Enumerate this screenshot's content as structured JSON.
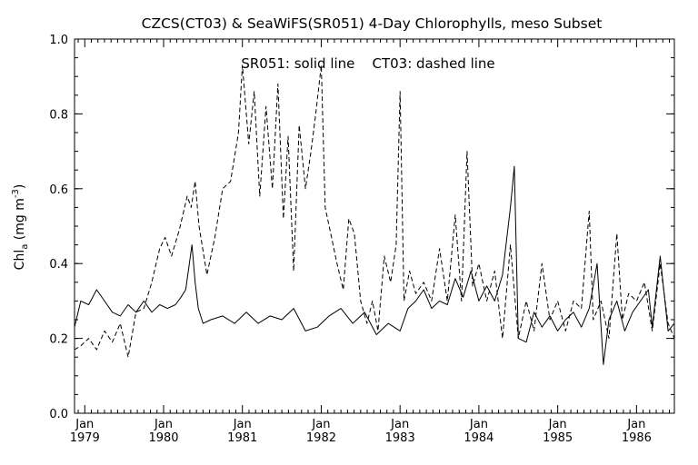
{
  "chart_data": {
    "type": "line",
    "title": "CZCS(CT03) & SeaWiFS(SR051) 4-Day Chlorophylls, meso Subset",
    "annotation": "SR051: solid line    CT03: dashed line",
    "ylabel_main": "Chl",
    "ylabel_sub": "a",
    "ylabel_unit_open": " (mg m",
    "ylabel_sup": "-3",
    "ylabel_unit_close": ")",
    "xlim": [
      1978.87,
      1986.48
    ],
    "ylim": [
      0.0,
      1.0
    ],
    "yticks": [
      {
        "value": 0.0,
        "label": "0.0"
      },
      {
        "value": 0.2,
        "label": "0.2"
      },
      {
        "value": 0.4,
        "label": "0.4"
      },
      {
        "value": 0.6,
        "label": "0.6"
      },
      {
        "value": 0.8,
        "label": "0.8"
      },
      {
        "value": 1.0,
        "label": "1.0"
      }
    ],
    "xticks": [
      {
        "value": 1979.0,
        "month": "Jan",
        "year": "1979"
      },
      {
        "value": 1980.0,
        "month": "Jan",
        "year": "1980"
      },
      {
        "value": 1981.0,
        "month": "Jan",
        "year": "1981"
      },
      {
        "value": 1982.0,
        "month": "Jan",
        "year": "1982"
      },
      {
        "value": 1983.0,
        "month": "Jan",
        "year": "1983"
      },
      {
        "value": 1984.0,
        "month": "Jan",
        "year": "1984"
      },
      {
        "value": 1985.0,
        "month": "Jan",
        "year": "1985"
      },
      {
        "value": 1986.0,
        "month": "Jan",
        "year": "1986"
      }
    ],
    "grid": false,
    "series": [
      {
        "name": "SR051",
        "style": "solid",
        "x": [
          1978.87,
          1978.95,
          1979.05,
          1979.15,
          1979.25,
          1979.35,
          1979.45,
          1979.55,
          1979.65,
          1979.75,
          1979.85,
          1979.95,
          1980.05,
          1980.15,
          1980.22,
          1980.28,
          1980.32,
          1980.36,
          1980.4,
          1980.44,
          1980.5,
          1980.6,
          1980.75,
          1980.9,
          1981.05,
          1981.2,
          1981.35,
          1981.5,
          1981.65,
          1981.8,
          1981.95,
          1982.1,
          1982.25,
          1982.4,
          1982.55,
          1982.7,
          1982.85,
          1983.0,
          1983.1,
          1983.2,
          1983.3,
          1983.4,
          1983.5,
          1983.6,
          1983.7,
          1983.8,
          1983.9,
          1984.0,
          1984.1,
          1984.2,
          1984.3,
          1984.4,
          1984.45,
          1984.5,
          1984.6,
          1984.7,
          1984.8,
          1984.9,
          1985.0,
          1985.1,
          1985.2,
          1985.3,
          1985.4,
          1985.5,
          1985.58,
          1985.65,
          1985.75,
          1985.85,
          1985.95,
          1986.05,
          1986.15,
          1986.2,
          1986.3,
          1986.4,
          1986.48
        ],
        "y": [
          0.23,
          0.3,
          0.29,
          0.33,
          0.3,
          0.27,
          0.26,
          0.29,
          0.27,
          0.3,
          0.27,
          0.29,
          0.28,
          0.29,
          0.31,
          0.33,
          0.39,
          0.45,
          0.35,
          0.28,
          0.24,
          0.25,
          0.26,
          0.24,
          0.27,
          0.24,
          0.26,
          0.25,
          0.28,
          0.22,
          0.23,
          0.26,
          0.28,
          0.24,
          0.27,
          0.21,
          0.24,
          0.22,
          0.28,
          0.3,
          0.33,
          0.28,
          0.3,
          0.29,
          0.36,
          0.31,
          0.38,
          0.3,
          0.34,
          0.3,
          0.37,
          0.55,
          0.66,
          0.2,
          0.19,
          0.27,
          0.23,
          0.26,
          0.22,
          0.25,
          0.27,
          0.23,
          0.28,
          0.4,
          0.13,
          0.25,
          0.3,
          0.22,
          0.27,
          0.3,
          0.33,
          0.23,
          0.42,
          0.22,
          0.24
        ]
      },
      {
        "name": "CT03",
        "style": "dashed",
        "x": [
          1978.87,
          1978.95,
          1979.05,
          1979.15,
          1979.25,
          1979.35,
          1979.45,
          1979.55,
          1979.65,
          1979.75,
          1979.85,
          1979.95,
          1980.02,
          1980.1,
          1980.2,
          1980.3,
          1980.35,
          1980.4,
          1980.45,
          1980.55,
          1980.65,
          1980.75,
          1980.85,
          1980.95,
          1981.0,
          1981.08,
          1981.15,
          1981.22,
          1981.3,
          1981.38,
          1981.45,
          1981.52,
          1981.58,
          1981.65,
          1981.72,
          1981.8,
          1981.87,
          1981.93,
          1982.0,
          1982.05,
          1982.12,
          1982.2,
          1982.28,
          1982.35,
          1982.42,
          1982.5,
          1982.58,
          1982.65,
          1982.72,
          1982.8,
          1982.88,
          1982.95,
          1983.0,
          1983.05,
          1983.12,
          1983.2,
          1983.3,
          1983.4,
          1983.5,
          1983.6,
          1983.7,
          1983.78,
          1983.85,
          1983.92,
          1984.0,
          1984.1,
          1984.2,
          1984.3,
          1984.4,
          1984.5,
          1984.6,
          1984.7,
          1984.8,
          1984.9,
          1985.0,
          1985.1,
          1985.2,
          1985.3,
          1985.4,
          1985.45,
          1985.55,
          1985.65,
          1985.75,
          1985.82,
          1985.9,
          1986.0,
          1986.1,
          1986.2,
          1986.3,
          1986.4,
          1986.48
        ],
        "y": [
          0.17,
          0.18,
          0.2,
          0.17,
          0.22,
          0.19,
          0.24,
          0.15,
          0.27,
          0.28,
          0.35,
          0.44,
          0.47,
          0.42,
          0.49,
          0.58,
          0.55,
          0.62,
          0.5,
          0.37,
          0.47,
          0.6,
          0.62,
          0.75,
          0.93,
          0.72,
          0.86,
          0.58,
          0.82,
          0.6,
          0.88,
          0.52,
          0.74,
          0.38,
          0.77,
          0.6,
          0.7,
          0.8,
          0.93,
          0.55,
          0.48,
          0.4,
          0.33,
          0.52,
          0.48,
          0.3,
          0.24,
          0.3,
          0.22,
          0.42,
          0.35,
          0.45,
          0.86,
          0.3,
          0.38,
          0.32,
          0.35,
          0.3,
          0.44,
          0.3,
          0.53,
          0.3,
          0.7,
          0.34,
          0.4,
          0.3,
          0.38,
          0.2,
          0.45,
          0.2,
          0.3,
          0.22,
          0.4,
          0.25,
          0.3,
          0.22,
          0.3,
          0.28,
          0.54,
          0.25,
          0.3,
          0.2,
          0.48,
          0.25,
          0.32,
          0.3,
          0.35,
          0.22,
          0.4,
          0.24,
          0.2
        ]
      }
    ]
  }
}
